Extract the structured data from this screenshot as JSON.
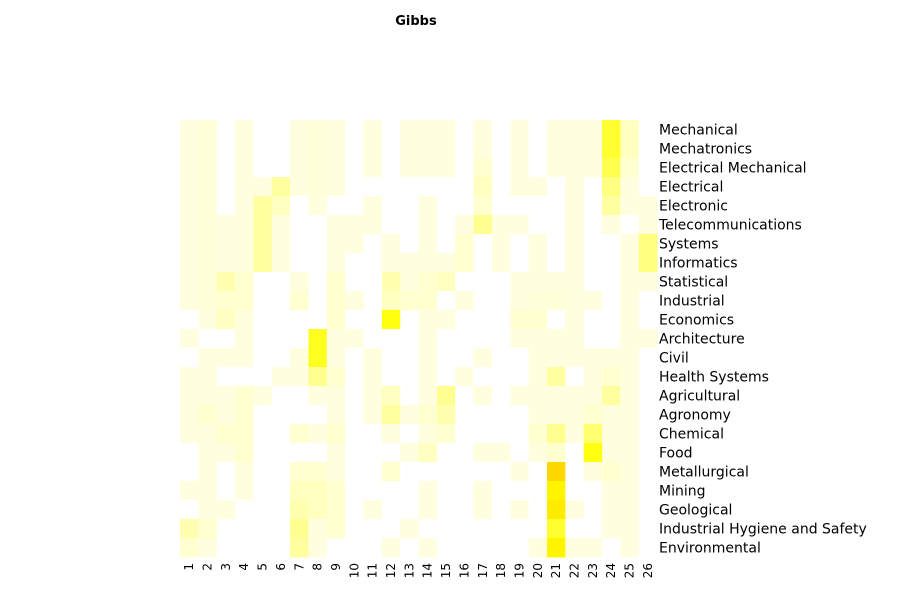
{
  "chart_data": {
    "type": "heatmap",
    "title": "Gibbs",
    "xlabel": "",
    "ylabel": "",
    "legend": "none",
    "grid": false,
    "color_low": "#ffffff",
    "color_high": "#ffff00",
    "color_peak": "#ffd700",
    "value_range": [
      0,
      1
    ],
    "columns": [
      "1",
      "2",
      "3",
      "4",
      "5",
      "6",
      "7",
      "8",
      "9",
      "10",
      "11",
      "12",
      "13",
      "14",
      "15",
      "16",
      "17",
      "18",
      "19",
      "20",
      "21",
      "22",
      "23",
      "24",
      "25",
      "26"
    ],
    "rows": [
      "Mechanical",
      "Mechatronics",
      "Electrical Mechanical",
      "Electrical",
      "Electronic",
      "Telecommunications",
      "Systems",
      "Informatics",
      "Statistical",
      "Industrial",
      "Economics",
      "Architecture",
      "Civil",
      "Health Systems",
      "Agricultural",
      "Agronomy",
      "Chemical",
      "Food",
      "Metallurgical",
      "Mining",
      "Geological",
      "Industrial Hygiene and Safety",
      "Environmental"
    ],
    "values": [
      [
        0.1,
        0.12,
        0.0,
        0.1,
        0.0,
        0.0,
        0.1,
        0.12,
        0.1,
        0.0,
        0.1,
        0.0,
        0.1,
        0.1,
        0.1,
        0.0,
        0.1,
        0.0,
        0.1,
        0.0,
        0.1,
        0.1,
        0.1,
        0.65,
        0.2,
        0.0
      ],
      [
        0.1,
        0.12,
        0.0,
        0.1,
        0.0,
        0.0,
        0.1,
        0.12,
        0.1,
        0.0,
        0.1,
        0.0,
        0.1,
        0.1,
        0.1,
        0.0,
        0.1,
        0.0,
        0.1,
        0.0,
        0.1,
        0.1,
        0.1,
        0.65,
        0.2,
        0.0
      ],
      [
        0.1,
        0.12,
        0.0,
        0.1,
        0.0,
        0.0,
        0.1,
        0.12,
        0.1,
        0.0,
        0.1,
        0.0,
        0.1,
        0.1,
        0.1,
        0.0,
        0.15,
        0.0,
        0.1,
        0.0,
        0.1,
        0.1,
        0.1,
        0.55,
        0.15,
        0.0
      ],
      [
        0.1,
        0.12,
        0.0,
        0.1,
        0.1,
        0.3,
        0.1,
        0.12,
        0.1,
        0.0,
        0.0,
        0.0,
        0.0,
        0.0,
        0.0,
        0.0,
        0.2,
        0.0,
        0.1,
        0.1,
        0.0,
        0.1,
        0.0,
        0.4,
        0.1,
        0.0
      ],
      [
        0.1,
        0.12,
        0.0,
        0.1,
        0.3,
        0.2,
        0.0,
        0.1,
        0.0,
        0.0,
        0.1,
        0.0,
        0.0,
        0.1,
        0.0,
        0.0,
        0.15,
        0.0,
        0.0,
        0.0,
        0.0,
        0.1,
        0.0,
        0.3,
        0.1,
        0.1
      ],
      [
        0.1,
        0.12,
        0.1,
        0.1,
        0.3,
        0.1,
        0.0,
        0.0,
        0.1,
        0.1,
        0.1,
        0.0,
        0.0,
        0.1,
        0.0,
        0.1,
        0.35,
        0.1,
        0.1,
        0.0,
        0.0,
        0.1,
        0.0,
        0.1,
        0.0,
        0.1
      ],
      [
        0.1,
        0.12,
        0.1,
        0.1,
        0.3,
        0.1,
        0.0,
        0.0,
        0.1,
        0.1,
        0.0,
        0.1,
        0.0,
        0.1,
        0.0,
        0.15,
        0.0,
        0.1,
        0.0,
        0.1,
        0.0,
        0.1,
        0.0,
        0.0,
        0.1,
        0.4
      ],
      [
        0.1,
        0.12,
        0.1,
        0.1,
        0.3,
        0.1,
        0.0,
        0.0,
        0.1,
        0.0,
        0.0,
        0.1,
        0.1,
        0.1,
        0.1,
        0.15,
        0.0,
        0.1,
        0.0,
        0.1,
        0.0,
        0.1,
        0.0,
        0.0,
        0.1,
        0.4
      ],
      [
        0.1,
        0.12,
        0.25,
        0.15,
        0.0,
        0.0,
        0.1,
        0.0,
        0.15,
        0.0,
        0.0,
        0.25,
        0.1,
        0.15,
        0.2,
        0.0,
        0.0,
        0.0,
        0.1,
        0.1,
        0.1,
        0.1,
        0.0,
        0.0,
        0.1,
        0.1
      ],
      [
        0.1,
        0.12,
        0.15,
        0.15,
        0.0,
        0.0,
        0.15,
        0.0,
        0.15,
        0.1,
        0.0,
        0.2,
        0.15,
        0.15,
        0.0,
        0.1,
        0.0,
        0.0,
        0.1,
        0.12,
        0.12,
        0.1,
        0.1,
        0.0,
        0.1,
        0.0
      ],
      [
        0.0,
        0.1,
        0.2,
        0.1,
        0.0,
        0.0,
        0.0,
        0.0,
        0.15,
        0.0,
        0.0,
        0.75,
        0.0,
        0.1,
        0.1,
        0.0,
        0.0,
        0.0,
        0.15,
        0.15,
        0.0,
        0.1,
        0.0,
        0.0,
        0.1,
        0.0
      ],
      [
        0.1,
        0.0,
        0.0,
        0.1,
        0.0,
        0.0,
        0.0,
        0.7,
        0.1,
        0.1,
        0.0,
        0.0,
        0.0,
        0.1,
        0.0,
        0.0,
        0.0,
        0.0,
        0.1,
        0.1,
        0.1,
        0.1,
        0.0,
        0.0,
        0.1,
        0.1
      ],
      [
        0.0,
        0.1,
        0.1,
        0.1,
        0.0,
        0.0,
        0.1,
        0.7,
        0.1,
        0.0,
        0.1,
        0.0,
        0.0,
        0.1,
        0.0,
        0.0,
        0.1,
        0.0,
        0.0,
        0.1,
        0.1,
        0.1,
        0.1,
        0.1,
        0.1,
        0.0
      ],
      [
        0.1,
        0.1,
        0.0,
        0.0,
        0.0,
        0.1,
        0.1,
        0.35,
        0.15,
        0.0,
        0.1,
        0.0,
        0.0,
        0.1,
        0.0,
        0.1,
        0.0,
        0.0,
        0.0,
        0.1,
        0.3,
        0.0,
        0.1,
        0.15,
        0.1,
        0.0
      ],
      [
        0.1,
        0.1,
        0.1,
        0.15,
        0.1,
        0.0,
        0.0,
        0.1,
        0.1,
        0.0,
        0.1,
        0.2,
        0.0,
        0.1,
        0.35,
        0.0,
        0.1,
        0.0,
        0.1,
        0.1,
        0.1,
        0.1,
        0.1,
        0.3,
        0.1,
        0.0
      ],
      [
        0.1,
        0.15,
        0.1,
        0.15,
        0.0,
        0.0,
        0.0,
        0.0,
        0.1,
        0.0,
        0.1,
        0.3,
        0.1,
        0.15,
        0.25,
        0.0,
        0.0,
        0.0,
        0.0,
        0.1,
        0.1,
        0.1,
        0.15,
        0.1,
        0.1,
        0.0
      ],
      [
        0.1,
        0.1,
        0.15,
        0.15,
        0.0,
        0.0,
        0.15,
        0.1,
        0.15,
        0.0,
        0.0,
        0.1,
        0.0,
        0.1,
        0.15,
        0.0,
        0.0,
        0.0,
        0.0,
        0.15,
        0.35,
        0.1,
        0.45,
        0.1,
        0.1,
        0.0
      ],
      [
        0.0,
        0.1,
        0.1,
        0.15,
        0.0,
        0.0,
        0.0,
        0.0,
        0.1,
        0.0,
        0.0,
        0.0,
        0.1,
        0.2,
        0.0,
        0.0,
        0.1,
        0.1,
        0.0,
        0.1,
        0.15,
        0.0,
        0.75,
        0.1,
        0.1,
        0.0
      ],
      [
        0.0,
        0.1,
        0.0,
        0.1,
        0.0,
        0.0,
        0.15,
        0.15,
        0.1,
        0.0,
        0.0,
        0.15,
        0.0,
        0.0,
        0.0,
        0.0,
        0.0,
        0.0,
        0.1,
        0.0,
        1.0,
        0.0,
        0.1,
        0.15,
        0.1,
        0.0
      ],
      [
        0.1,
        0.1,
        0.0,
        0.1,
        0.0,
        0.0,
        0.2,
        0.2,
        0.15,
        0.0,
        0.0,
        0.0,
        0.0,
        0.1,
        0.0,
        0.0,
        0.1,
        0.0,
        0.0,
        0.0,
        0.85,
        0.0,
        0.0,
        0.1,
        0.1,
        0.0
      ],
      [
        0.0,
        0.1,
        0.1,
        0.0,
        0.0,
        0.0,
        0.25,
        0.2,
        0.15,
        0.0,
        0.1,
        0.0,
        0.0,
        0.1,
        0.0,
        0.0,
        0.1,
        0.0,
        0.1,
        0.0,
        0.9,
        0.1,
        0.0,
        0.1,
        0.1,
        0.0
      ],
      [
        0.25,
        0.15,
        0.0,
        0.0,
        0.0,
        0.0,
        0.35,
        0.1,
        0.15,
        0.0,
        0.0,
        0.0,
        0.1,
        0.0,
        0.0,
        0.0,
        0.0,
        0.0,
        0.0,
        0.0,
        0.65,
        0.0,
        0.0,
        0.1,
        0.1,
        0.0
      ],
      [
        0.15,
        0.1,
        0.0,
        0.0,
        0.0,
        0.0,
        0.3,
        0.1,
        0.0,
        0.0,
        0.0,
        0.1,
        0.0,
        0.1,
        0.0,
        0.0,
        0.0,
        0.0,
        0.0,
        0.1,
        0.85,
        0.1,
        0.1,
        0.0,
        0.1,
        0.0
      ]
    ]
  }
}
